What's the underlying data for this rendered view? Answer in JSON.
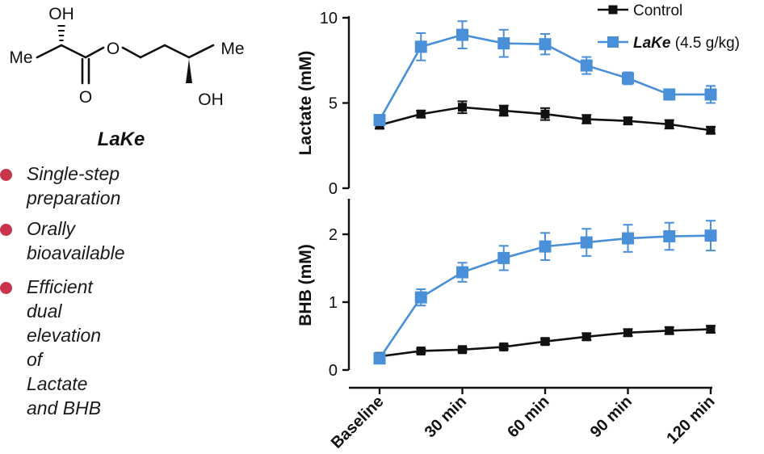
{
  "molecule": {
    "name": "LaKe",
    "atoms": {
      "oh_top": "OH",
      "me_left": "Me",
      "o_ester": "O",
      "o_carbonyl": "O",
      "me_right": "Me",
      "oh_bottom": "OH"
    }
  },
  "features": [
    {
      "lines": [
        "Single-step preparation"
      ]
    },
    {
      "lines": [
        "Orally bioavailable"
      ]
    },
    {
      "lines": [
        "Efficient dual elevation",
        "of Lactate and BHB"
      ]
    }
  ],
  "colors": {
    "bullet": "#c8344c",
    "control": "#111111",
    "lake": "#4a90d9",
    "axis": "#111111"
  },
  "legend": {
    "position": "top-right",
    "entries": [
      {
        "series": "control",
        "text": "Control"
      },
      {
        "series": "lake",
        "name_italic": "LaKe",
        "text": " (4.5 g/kg)"
      }
    ]
  },
  "chart_data": [
    {
      "type": "line",
      "ylabel": "Lactate (mM)",
      "ylim": [
        0,
        10
      ],
      "yticks": [
        0,
        5,
        10
      ],
      "x": [
        0,
        15,
        30,
        45,
        60,
        75,
        90,
        105,
        120
      ],
      "xlim": [
        0,
        120
      ],
      "series": [
        {
          "name": "Control",
          "values": [
            3.7,
            4.35,
            4.75,
            4.55,
            4.35,
            4.05,
            3.95,
            3.75,
            3.4
          ],
          "errors": [
            0.2,
            0.2,
            0.35,
            0.3,
            0.35,
            0.25,
            0.2,
            0.25,
            0.2
          ]
        },
        {
          "name": "LaKe (4.5 g/kg)",
          "values": [
            4.0,
            8.3,
            9.0,
            8.5,
            8.45,
            7.2,
            6.45,
            5.5,
            5.5
          ],
          "errors": [
            0.3,
            0.8,
            0.8,
            0.8,
            0.6,
            0.5,
            0.35,
            0.3,
            0.5
          ]
        }
      ]
    },
    {
      "type": "line",
      "ylabel": "BHB (mM)",
      "ylim": [
        0,
        2.5
      ],
      "yticks": [
        0,
        1,
        2
      ],
      "x": [
        0,
        15,
        30,
        45,
        60,
        75,
        90,
        105,
        120
      ],
      "xlim": [
        0,
        120
      ],
      "xtick_values": [
        0,
        30,
        60,
        90,
        120
      ],
      "xtick_labels": [
        "Baseline",
        "30 min",
        "60 min",
        "90 min",
        "120 min"
      ],
      "series": [
        {
          "name": "Control",
          "values": [
            0.2,
            0.28,
            0.3,
            0.34,
            0.42,
            0.49,
            0.55,
            0.58,
            0.6
          ],
          "errors": [
            0.02,
            0.03,
            0.03,
            0.03,
            0.04,
            0.05,
            0.05,
            0.05,
            0.05
          ]
        },
        {
          "name": "LaKe (4.5 g/kg)",
          "values": [
            0.17,
            1.07,
            1.44,
            1.65,
            1.82,
            1.88,
            1.94,
            1.97,
            1.98
          ],
          "errors": [
            0.05,
            0.12,
            0.14,
            0.18,
            0.2,
            0.2,
            0.2,
            0.2,
            0.22
          ]
        }
      ]
    }
  ]
}
